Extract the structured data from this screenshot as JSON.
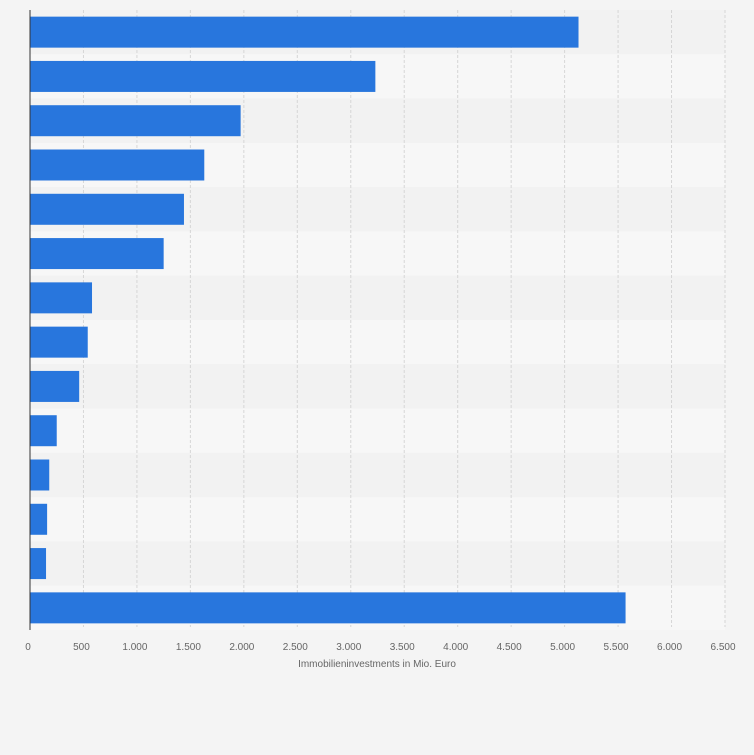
{
  "chart_data": {
    "type": "bar",
    "orientation": "horizontal",
    "title": "",
    "xlabel": "Immobilieninvestments in Mio. Euro",
    "ylabel": "",
    "xlim": [
      0,
      6500
    ],
    "x_ticks": [
      0,
      500,
      1000,
      1500,
      2000,
      2500,
      3000,
      3500,
      4000,
      4500,
      5000,
      5500,
      6000,
      6500
    ],
    "x_tick_labels": [
      "0",
      "500",
      "1.000",
      "1.500",
      "2.000",
      "2.500",
      "3.000",
      "3.500",
      "4.000",
      "4.500",
      "5.000",
      "5.500",
      "6.000",
      "6.500"
    ],
    "categories": [
      "",
      "",
      "",
      "",
      "",
      "",
      "",
      "",
      "",
      "",
      "",
      "",
      "",
      ""
    ],
    "values": [
      5130,
      3230,
      1970,
      1630,
      1440,
      1250,
      580,
      540,
      460,
      250,
      180,
      160,
      150,
      5570
    ],
    "grid": true,
    "legend": "none",
    "colors": {
      "bar": "#2876dd",
      "background": "#f4f4f4",
      "band_light": "#f7f7f7",
      "band_dark": "#f2f2f2",
      "grid": "#d6d6d6",
      "axis": "#333333",
      "tick_text": "#666666"
    }
  }
}
